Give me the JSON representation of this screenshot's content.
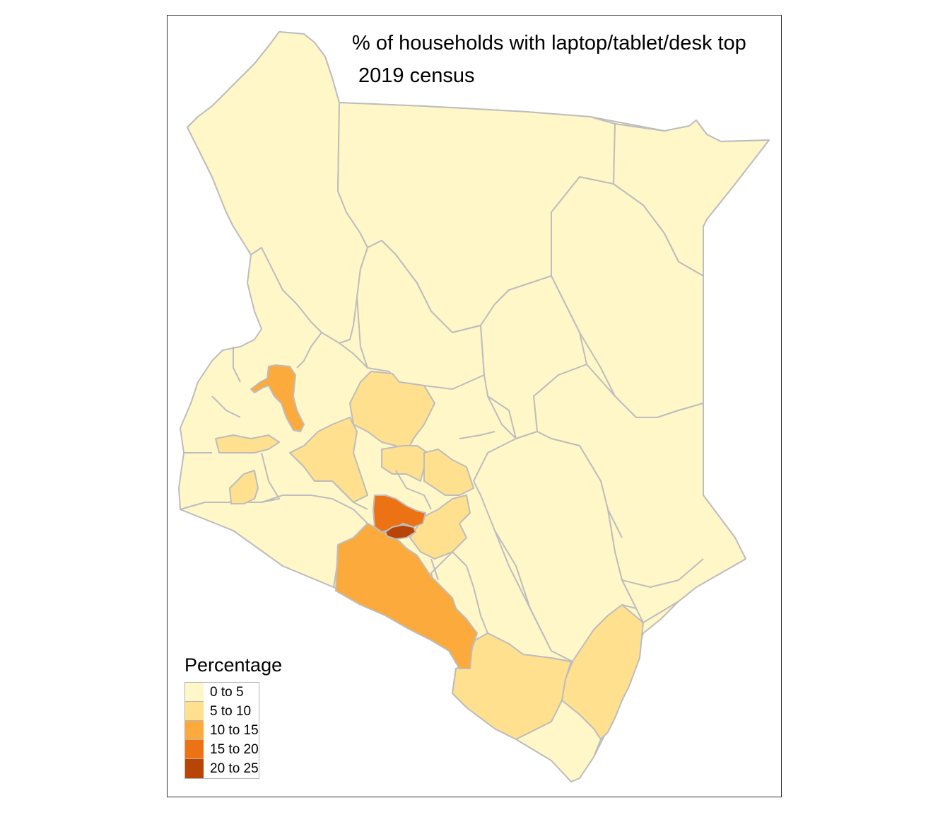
{
  "title": {
    "line1": "% of households with laptop/tablet/desk top",
    "line2": "2019 census"
  },
  "legend": {
    "title": "Percentage",
    "items": [
      {
        "label": "0 to 5",
        "color": "#fff7c8"
      },
      {
        "label": "5 to 10",
        "color": "#fee08f"
      },
      {
        "label": "10 to 15",
        "color": "#fdaa3c"
      },
      {
        "label": "15 to 20",
        "color": "#ec7214"
      },
      {
        "label": "20 to 25",
        "color": "#b84405"
      }
    ]
  },
  "colors": {
    "border": "#bdbdbd",
    "frame": "#333333",
    "background": "#ffffff"
  }
}
